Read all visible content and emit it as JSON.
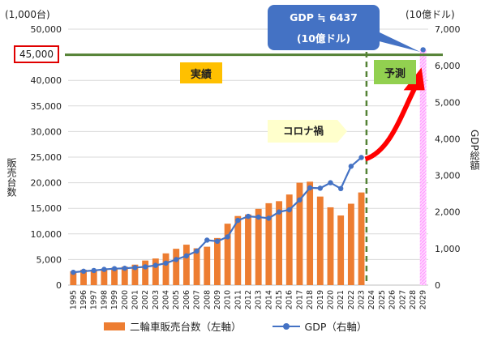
{
  "chart_data": {
    "type": "bar",
    "categories": [
      "1995",
      "1996",
      "1997",
      "1998",
      "1999",
      "2000",
      "2001",
      "2002",
      "2003",
      "2004",
      "2005",
      "2006",
      "2007",
      "2008",
      "2009",
      "2010",
      "2011",
      "2012",
      "2013",
      "2014",
      "2015",
      "2016",
      "2017",
      "2018",
      "2019",
      "2020",
      "2021",
      "2022",
      "2023",
      "2024",
      "2025",
      "2026",
      "2027",
      "2028",
      "2029"
    ],
    "series": [
      {
        "name": "二輪車販売台数（左軸）",
        "type": "bar",
        "axis": "left",
        "color": "#ed7d31",
        "values": [
          2700,
          3000,
          3000,
          3200,
          3400,
          3600,
          4000,
          4800,
          5200,
          6200,
          7100,
          7900,
          7200,
          7500,
          9200,
          12000,
          13500,
          13800,
          14900,
          16000,
          16400,
          17700,
          20000,
          20200,
          17300,
          15200,
          13600,
          15900,
          18100,
          null,
          null,
          null,
          null,
          null,
          null
        ]
      },
      {
        "name": "GDP（右軸）",
        "type": "line",
        "axis": "right",
        "color": "#4472c4",
        "values": [
          350,
          380,
          400,
          430,
          450,
          460,
          480,
          500,
          540,
          600,
          700,
          800,
          930,
          1230,
          1200,
          1320,
          1770,
          1880,
          1860,
          1830,
          2000,
          2060,
          2330,
          2660,
          2650,
          2800,
          2640,
          3250,
          3490,
          null,
          null,
          null,
          null,
          null,
          6437
        ]
      }
    ],
    "forecast": {
      "category": "2029",
      "color": "#ff99ff",
      "pattern": "hatched",
      "value": 6437
    },
    "left_axis": {
      "unit": "(1,000台)",
      "title": "販売台数",
      "ylim": [
        0,
        50000
      ],
      "ticks": [
        "0",
        "5,000",
        "10,000",
        "15,000",
        "20,000",
        "25,000",
        "30,000",
        "35,000",
        "40,000",
        "45,000",
        "50,000"
      ],
      "tick_values": [
        0,
        5000,
        10000,
        15000,
        20000,
        25000,
        30000,
        35000,
        40000,
        45000,
        50000
      ]
    },
    "right_axis": {
      "unit": "(10億ドル)",
      "title": "GDP総額",
      "ylim": [
        0,
        7000
      ],
      "ticks": [
        "0",
        "1,000",
        "2,000",
        "3,000",
        "4,000",
        "5,000",
        "6,000",
        "7,000"
      ],
      "tick_values": [
        0,
        1000,
        2000,
        3000,
        4000,
        5000,
        6000,
        7000
      ]
    },
    "reference_line": {
      "value": 45000,
      "axis": "left",
      "color": "#548235"
    },
    "divider_year": "2023",
    "grid": true,
    "legend": {
      "placement": "bottom"
    }
  },
  "labels": {
    "actual": "実績",
    "forecast": "予測",
    "covid": "コロナ禍",
    "gdp_callout_line1": "GDP ≒ 6437",
    "gdp_callout_line2": "(10億ドル)",
    "highlight_tick": "45,000"
  },
  "legend_items": {
    "bar": "二輪車販売台数（左軸）",
    "line": "GDP（右軸）"
  }
}
